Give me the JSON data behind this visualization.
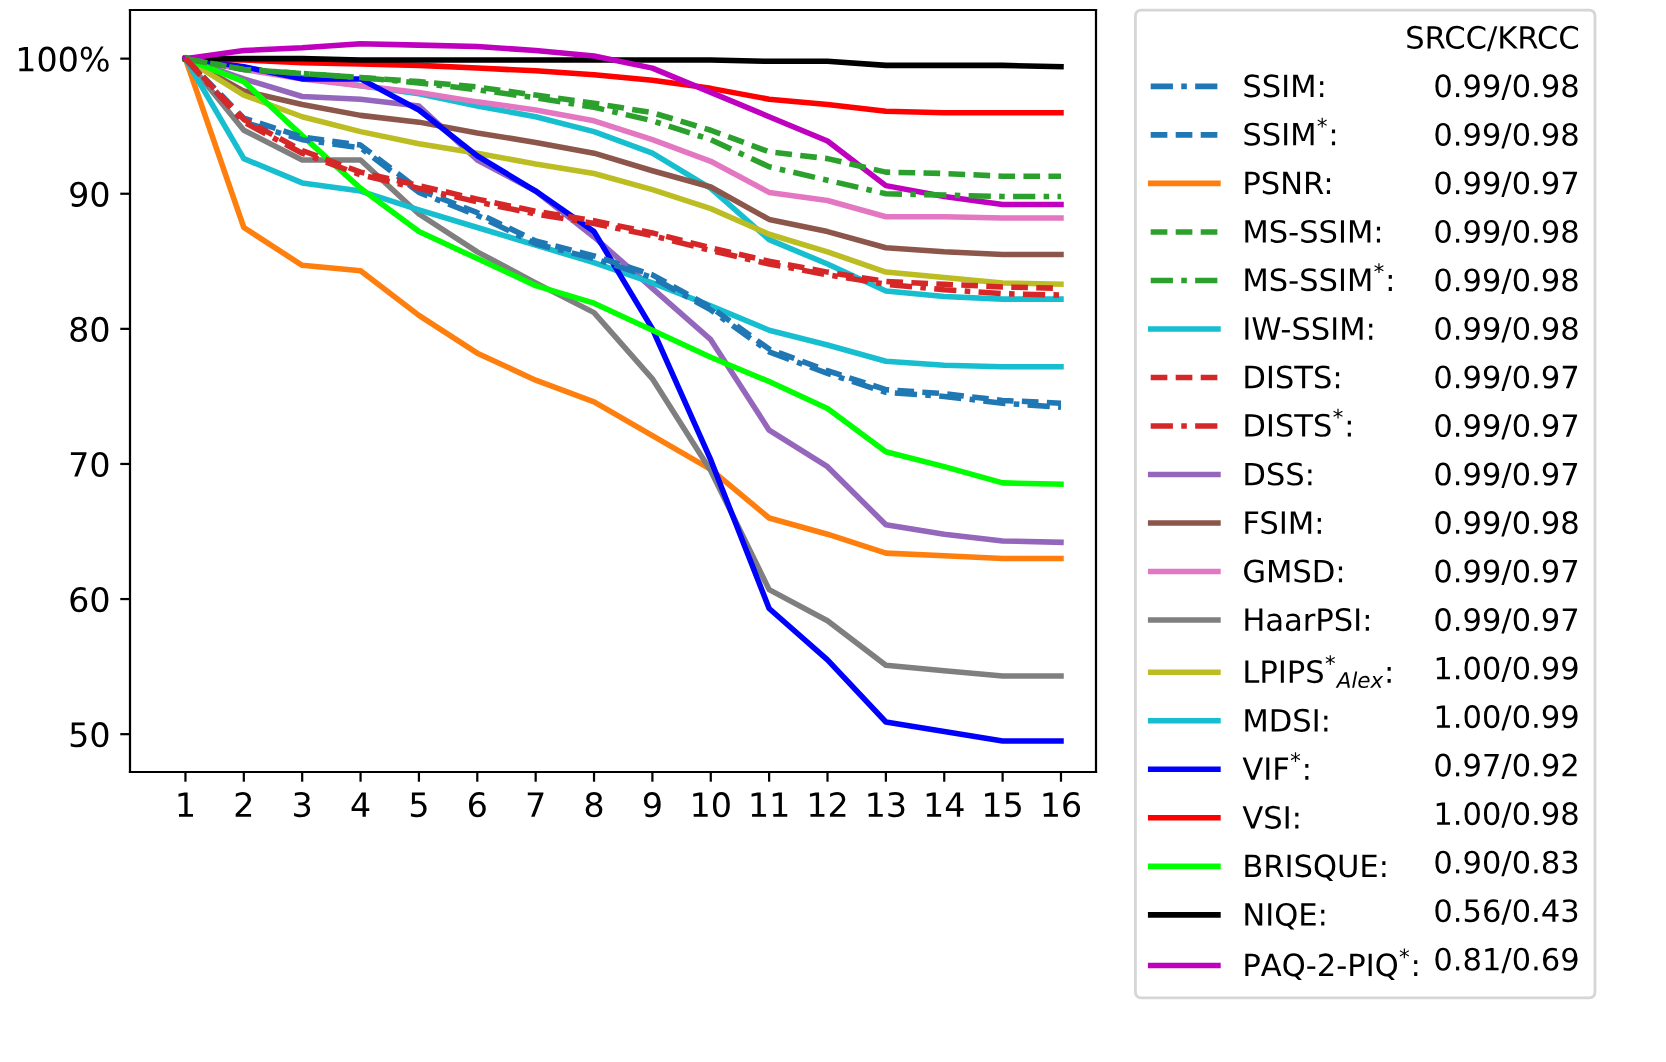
{
  "chart_data": {
    "type": "line",
    "legend_title": "SRCC/KRCC",
    "legend": "right",
    "grid": false,
    "x": [
      1,
      2,
      3,
      4,
      5,
      6,
      7,
      8,
      9,
      10,
      11,
      12,
      13,
      14,
      15,
      16
    ],
    "xlim": [
      0.05,
      16.6
    ],
    "xticks": [
      1,
      2,
      3,
      4,
      5,
      6,
      7,
      8,
      9,
      10,
      11,
      12,
      13,
      14,
      15,
      16
    ],
    "ylim": [
      47.2,
      103.6
    ],
    "yticks": [
      50,
      60,
      70,
      80,
      90,
      {
        "value": 100,
        "label": "100%"
      }
    ],
    "annotations": [
      "0.99/0.98",
      "0.99/0.98",
      "0.99/0.97",
      "0.99/0.98",
      "0.99/0.98",
      "0.99/0.98",
      "0.99/0.97",
      "0.99/0.97",
      "0.99/0.97",
      "0.99/0.98",
      "0.99/0.97",
      "0.99/0.97",
      "1.00/0.99",
      "1.00/0.99",
      "0.97/0.92",
      "1.00/0.98",
      "0.90/0.83",
      "0.56/0.43",
      "0.81/0.69"
    ],
    "series": [
      {
        "name": "SSIM:",
        "color": "#1f77b4",
        "line_style": "dashdot",
        "values": [
          100,
          95.3,
          94.0,
          93.4,
          90.1,
          88.4,
          86.3,
          85.2,
          83.8,
          81.4,
          78.3,
          76.7,
          75.3,
          75.0,
          74.5,
          74.2
        ]
      },
      {
        "name": "SSIM$^{*}$:",
        "color": "#1f77b4",
        "line_style": "dashed",
        "values": [
          100,
          95.6,
          94.2,
          93.6,
          90.3,
          88.6,
          86.5,
          85.4,
          84.0,
          81.6,
          78.5,
          76.9,
          75.5,
          75.2,
          74.7,
          74.5
        ]
      },
      {
        "name": "PSNR:",
        "color": "#ff7f0e",
        "line_style": "solid",
        "values": [
          100,
          87.5,
          84.7,
          84.3,
          81.0,
          78.2,
          76.2,
          74.6,
          72.1,
          69.6,
          66.0,
          64.8,
          63.4,
          63.2,
          63.0,
          63.0
        ]
      },
      {
        "name": "MS-SSIM:",
        "color": "#2ca02c",
        "line_style": "dashed",
        "values": [
          100,
          99.2,
          98.9,
          98.6,
          98.3,
          97.9,
          97.3,
          96.7,
          96.0,
          94.7,
          93.1,
          92.6,
          91.6,
          91.5,
          91.3,
          91.3
        ]
      },
      {
        "name": "MS-SSIM$^{*}$:",
        "color": "#2ca02c",
        "line_style": "dashdot",
        "values": [
          100,
          99.2,
          98.9,
          98.6,
          98.2,
          97.7,
          97.1,
          96.4,
          95.4,
          94.0,
          92.0,
          91.0,
          90.0,
          89.9,
          89.8,
          89.8
        ]
      },
      {
        "name": "IW-SSIM:",
        "color": "#17becf",
        "line_style": "solid",
        "values": [
          100,
          99.3,
          98.6,
          98.0,
          97.4,
          96.5,
          95.7,
          94.6,
          93.0,
          90.4,
          86.6,
          84.8,
          82.8,
          82.4,
          82.2,
          82.2
        ]
      },
      {
        "name": "DISTS:",
        "color": "#d62728",
        "line_style": "dashed",
        "values": [
          100,
          95.5,
          93.2,
          91.6,
          90.6,
          89.6,
          88.7,
          88.0,
          87.1,
          86.0,
          85.0,
          84.2,
          83.5,
          83.3,
          83.1,
          83.0
        ]
      },
      {
        "name": "DISTS$^{*}$:",
        "color": "#d62728",
        "line_style": "dashdot",
        "values": [
          100,
          95.3,
          93.0,
          91.4,
          90.4,
          89.4,
          88.5,
          87.8,
          86.9,
          85.8,
          84.8,
          84.0,
          83.3,
          82.9,
          82.6,
          82.5
        ]
      },
      {
        "name": "DSS:",
        "color": "#9467bd",
        "line_style": "solid",
        "values": [
          100,
          98.5,
          97.2,
          97.0,
          96.5,
          92.5,
          90.2,
          86.8,
          83.0,
          79.2,
          72.5,
          69.8,
          65.5,
          64.8,
          64.3,
          64.2
        ]
      },
      {
        "name": "FSIM:",
        "color": "#8c564b",
        "line_style": "solid",
        "values": [
          100,
          97.6,
          96.6,
          95.8,
          95.3,
          94.5,
          93.8,
          93.0,
          91.7,
          90.5,
          88.1,
          87.2,
          86.0,
          85.7,
          85.5,
          85.5
        ]
      },
      {
        "name": "GMSD:",
        "color": "#e377c2",
        "line_style": "solid",
        "values": [
          100,
          99.2,
          98.5,
          98.0,
          97.5,
          96.8,
          96.2,
          95.4,
          94.0,
          92.4,
          90.1,
          89.5,
          88.3,
          88.3,
          88.2,
          88.2
        ]
      },
      {
        "name": "HaarPSI:",
        "color": "#7f7f7f",
        "line_style": "solid",
        "values": [
          100,
          94.7,
          92.5,
          92.5,
          88.5,
          85.7,
          83.4,
          81.2,
          76.3,
          69.5,
          60.7,
          58.4,
          55.1,
          54.7,
          54.3,
          54.3
        ]
      },
      {
        "name": "LPIPS$^{*}$$_{Alex}$:",
        "color": "#bcbd22",
        "line_style": "solid",
        "values": [
          100,
          97.3,
          95.7,
          94.6,
          93.7,
          93.0,
          92.2,
          91.5,
          90.3,
          88.9,
          87.0,
          85.7,
          84.2,
          83.8,
          83.4,
          83.3
        ]
      },
      {
        "name": "MDSI:",
        "color": "#17becf",
        "line_style": "solid",
        "values": [
          100,
          92.6,
          90.8,
          90.2,
          88.8,
          87.5,
          86.2,
          84.9,
          83.4,
          81.7,
          79.9,
          78.8,
          77.6,
          77.3,
          77.2,
          77.2
        ]
      },
      {
        "name": "VIF$^{*}$:",
        "color": "#0000ff",
        "line_style": "solid",
        "values": [
          100,
          99.4,
          98.5,
          98.5,
          96.2,
          92.8,
          90.2,
          87.2,
          80.0,
          70.3,
          59.3,
          55.5,
          50.9,
          50.2,
          49.5,
          49.5
        ]
      },
      {
        "name": "VSI:",
        "color": "#ff0000",
        "line_style": "solid",
        "values": [
          100,
          99.9,
          99.7,
          99.6,
          99.5,
          99.3,
          99.1,
          98.8,
          98.4,
          97.8,
          97.0,
          96.6,
          96.1,
          96.0,
          96.0,
          96.0
        ]
      },
      {
        "name": "BRISQUE:",
        "color": "#00ff00",
        "line_style": "solid",
        "values": [
          100,
          98.3,
          94.3,
          90.4,
          87.2,
          85.2,
          83.2,
          81.9,
          79.9,
          77.9,
          76.1,
          74.1,
          70.9,
          69.8,
          68.6,
          68.5
        ]
      },
      {
        "name": "NIQE:",
        "color": "#000000",
        "line_style": "solid",
        "values": [
          100,
          100,
          100,
          99.9,
          99.9,
          99.9,
          99.9,
          99.9,
          99.9,
          99.9,
          99.8,
          99.8,
          99.5,
          99.5,
          99.5,
          99.4
        ]
      },
      {
        "name": "PAQ-2-PIQ$^{*}$:",
        "color": "#bf00bf",
        "line_style": "solid",
        "values": [
          100,
          100.6,
          100.8,
          101.1,
          101.0,
          100.9,
          100.6,
          100.2,
          99.3,
          97.5,
          95.7,
          93.9,
          90.6,
          89.8,
          89.2,
          89.2
        ]
      }
    ]
  }
}
